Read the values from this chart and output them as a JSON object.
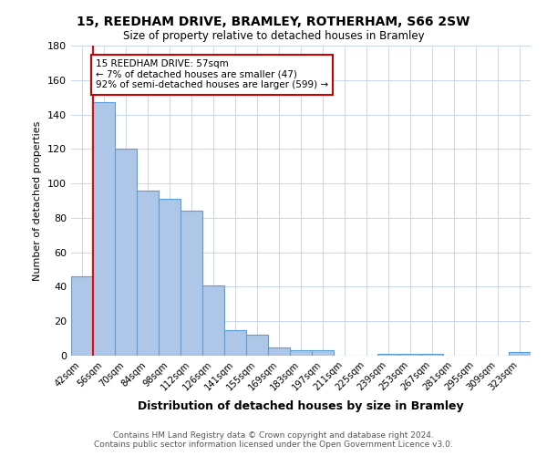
{
  "title_line1": "15, REEDHAM DRIVE, BRAMLEY, ROTHERHAM, S66 2SW",
  "title_line2": "Size of property relative to detached houses in Bramley",
  "xlabel": "Distribution of detached houses by size in Bramley",
  "ylabel": "Number of detached properties",
  "categories": [
    "42sqm",
    "56sqm",
    "70sqm",
    "84sqm",
    "98sqm",
    "112sqm",
    "126sqm",
    "141sqm",
    "155sqm",
    "169sqm",
    "183sqm",
    "197sqm",
    "211sqm",
    "225sqm",
    "239sqm",
    "253sqm",
    "267sqm",
    "281sqm",
    "295sqm",
    "309sqm",
    "323sqm"
  ],
  "values": [
    46,
    147,
    120,
    96,
    91,
    84,
    41,
    15,
    12,
    5,
    3,
    3,
    0,
    0,
    1,
    1,
    1,
    0,
    0,
    0,
    2
  ],
  "bar_color": "#aec6e8",
  "bar_edge_color": "#5a9fd4",
  "annotation_text": "15 REEDHAM DRIVE: 57sqm\n← 7% of detached houses are smaller (47)\n92% of semi-detached houses are larger (599) →",
  "annotation_box_color": "#ffffff",
  "annotation_box_edge_color": "#cc0000",
  "ylim": [
    0,
    180
  ],
  "yticks": [
    0,
    20,
    40,
    60,
    80,
    100,
    120,
    140,
    160,
    180
  ],
  "footer_line1": "Contains HM Land Registry data © Crown copyright and database right 2024.",
  "footer_line2": "Contains public sector information licensed under the Open Government Licence v3.0.",
  "background_color": "#ffffff",
  "grid_color": "#c8d8ec"
}
